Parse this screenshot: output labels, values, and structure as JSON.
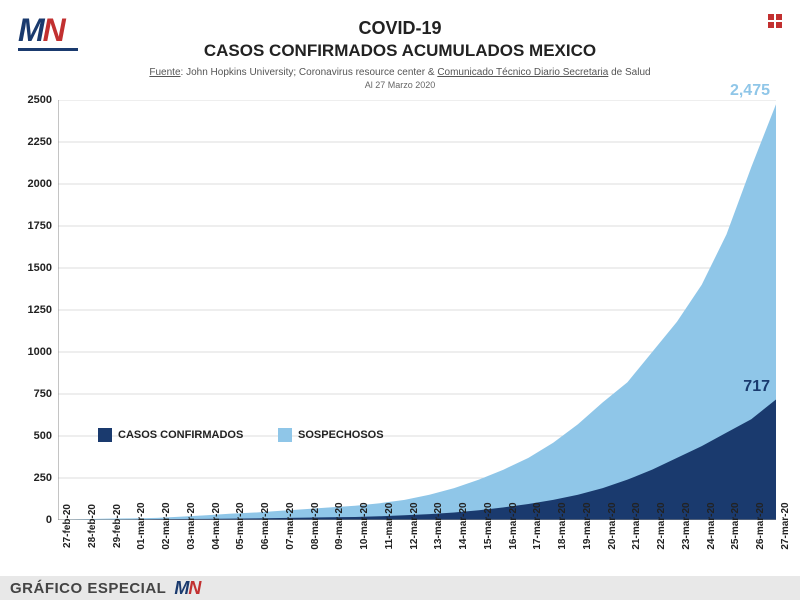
{
  "logo": {
    "letter1": "M",
    "letter2": "N"
  },
  "title_line1": "COVID-19",
  "title_line2": "CASOS CONFIRMADOS ACUMULADOS MEXICO",
  "source_prefix": "Fuente",
  "source_rest": ": John Hopkins University; Coronavirus resource center & ",
  "source_underlined": "Comunicado Técnico Diario Secretaria",
  "source_suffix": " de Salud",
  "date_label": "Al 27 Marzo 2020",
  "footer_text": "GRÁFICO ESPECIAL",
  "chart": {
    "type": "area",
    "background_color": "#ffffff",
    "grid_color": "#dddddd",
    "axis_color": "#888888",
    "ylim": [
      0,
      2500
    ],
    "ytick_step": 250,
    "yticks": [
      0,
      250,
      500,
      750,
      1000,
      1250,
      1500,
      1750,
      2000,
      2250,
      2500
    ],
    "label_fontsize": 11,
    "label_fontweight": "700",
    "x_labels": [
      "27-feb-20",
      "28-feb-20",
      "29-feb-20",
      "01-mar-20",
      "02-mar-20",
      "03-mar-20",
      "04-mar-20",
      "05-mar-20",
      "06-mar-20",
      "07-mar-20",
      "08-mar-20",
      "09-mar-20",
      "10-mar-20",
      "11-mar-20",
      "12-mar-20",
      "13-mar-20",
      "14-mar-20",
      "15-mar-20",
      "16-mar-20",
      "17-mar-20",
      "18-mar-20",
      "19-mar-20",
      "20-mar-20",
      "21-mar-20",
      "22-mar-20",
      "23-mar-20",
      "24-mar-20",
      "25-mar-20",
      "26-mar-20",
      "27-mar-20"
    ],
    "series": [
      {
        "name": "SOSPECHOSOS",
        "color": "#8fc6e8",
        "values": [
          3,
          5,
          8,
          10,
          13,
          20,
          28,
          38,
          45,
          55,
          65,
          75,
          85,
          100,
          120,
          150,
          190,
          240,
          300,
          370,
          460,
          570,
          700,
          820,
          1000,
          1180,
          1400,
          1700,
          2100,
          2475
        ],
        "end_label": "2,475",
        "end_label_color": "#8fc6e8"
      },
      {
        "name": "CASOS CONFIRMADOS",
        "color": "#1a3a6e",
        "values": [
          1,
          2,
          3,
          4,
          5,
          6,
          7,
          8,
          10,
          12,
          14,
          16,
          18,
          22,
          28,
          35,
          45,
          58,
          75,
          95,
          120,
          150,
          190,
          240,
          300,
          370,
          440,
          520,
          600,
          717
        ],
        "end_label": "717",
        "end_label_color": "#1a3a6e"
      }
    ],
    "legend": [
      {
        "label": "CASOS CONFIRMADOS",
        "color": "#1a3a6e"
      },
      {
        "label": "SOSPECHOSOS",
        "color": "#8fc6e8"
      }
    ]
  }
}
